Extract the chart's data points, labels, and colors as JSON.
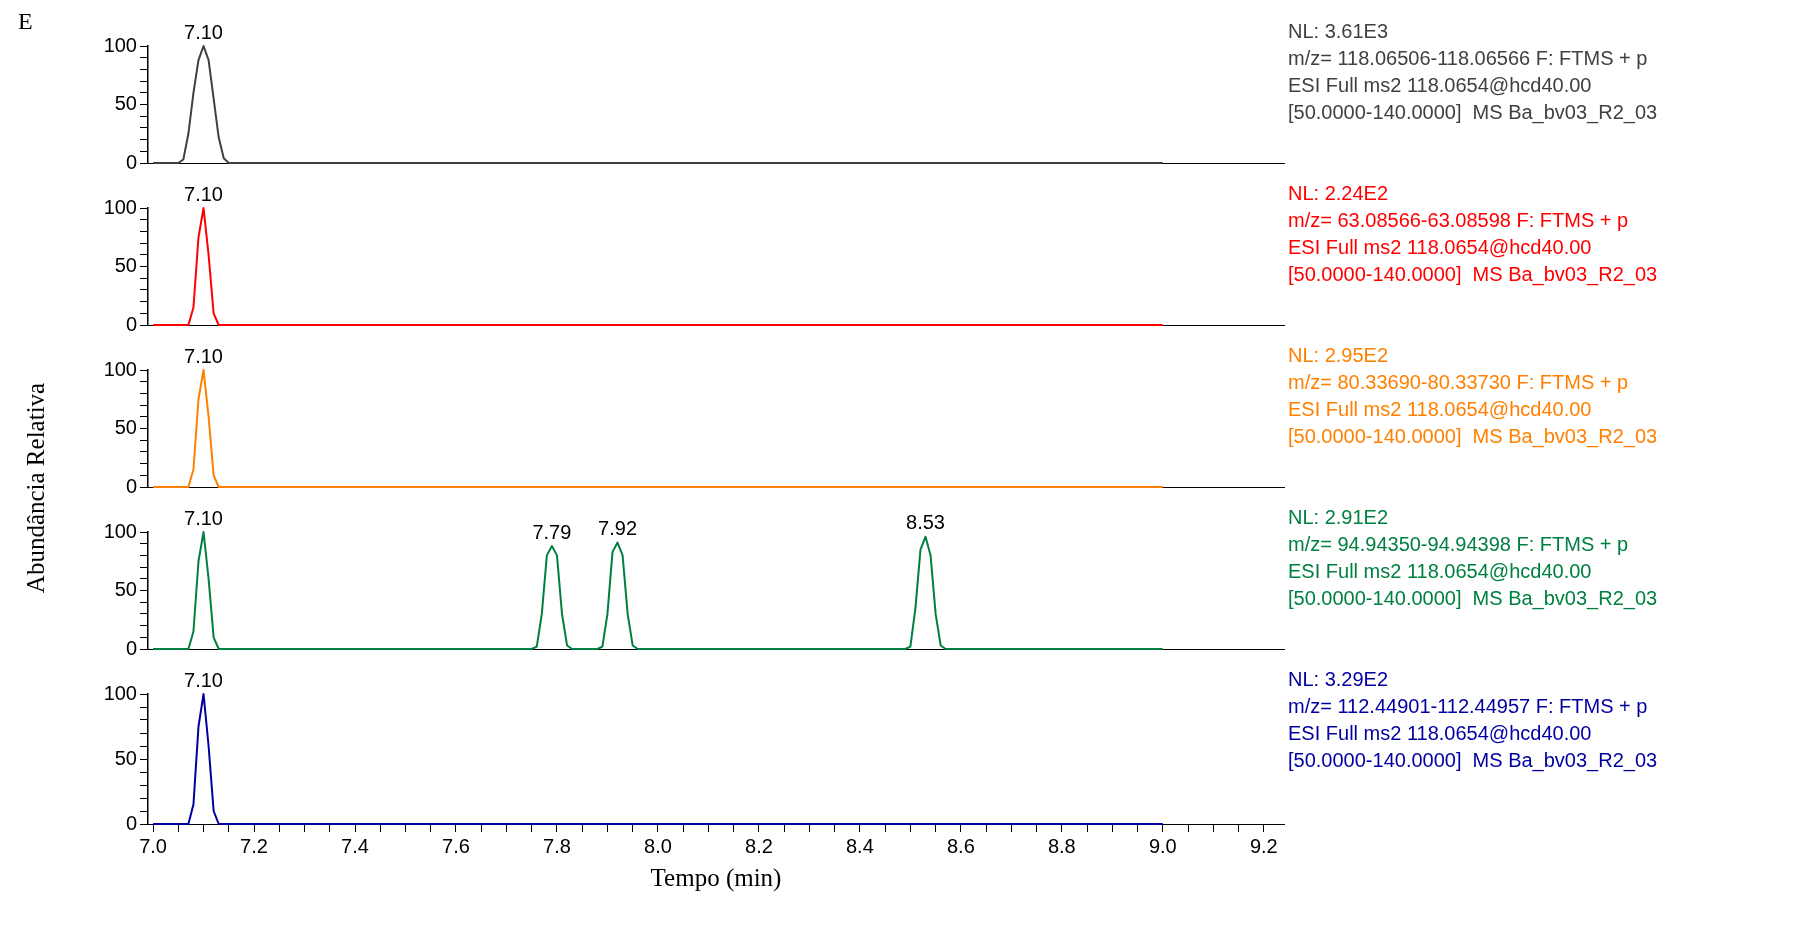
{
  "chart_data": [
    {
      "type": "line",
      "title": "E",
      "color": "#404040",
      "x": [
        7.0,
        7.05,
        7.06,
        7.07,
        7.08,
        7.09,
        7.1,
        7.11,
        7.12,
        7.13,
        7.14,
        7.15,
        9.0
      ],
      "values": [
        0,
        0,
        3,
        25,
        60,
        88,
        100,
        88,
        55,
        22,
        4,
        0,
        0
      ],
      "xlim": [
        6.99,
        9.24
      ],
      "ylim": [
        0,
        100
      ],
      "yticks": [
        {
          "value": 0,
          "label": "0"
        },
        {
          "value": 10,
          "label": null
        },
        {
          "value": 20,
          "label": null
        },
        {
          "value": 30,
          "label": null
        },
        {
          "value": 40,
          "label": null
        },
        {
          "value": 50,
          "label": "50"
        },
        {
          "value": 60,
          "label": null
        },
        {
          "value": 70,
          "label": null
        },
        {
          "value": 80,
          "label": null
        },
        {
          "value": 90,
          "label": null
        },
        {
          "value": 100,
          "label": "100"
        }
      ],
      "tick_labels": "y",
      "grid": false,
      "legend": false,
      "annotations": [
        {
          "text": "7.10",
          "x": 7.1,
          "y": 100
        },
        "NL: 3.61E3",
        "m/z= 118.06506-118.06566 F: FTMS + p",
        "ESI Full ms2 118.0654@hcd40.00",
        "[50.0000-140.0000]  MS Ba_bv03_R2_03"
      ]
    },
    {
      "type": "line",
      "color": "#ff0000",
      "x": [
        7.0,
        7.07,
        7.08,
        7.09,
        7.1,
        7.11,
        7.12,
        7.13,
        9.0
      ],
      "values": [
        0,
        0,
        15,
        75,
        100,
        60,
        10,
        0,
        0
      ],
      "xlim": [
        6.99,
        9.24
      ],
      "ylim": [
        0,
        100
      ],
      "yticks": [
        {
          "value": 0,
          "label": "0"
        },
        {
          "value": 10,
          "label": null
        },
        {
          "value": 20,
          "label": null
        },
        {
          "value": 30,
          "label": null
        },
        {
          "value": 40,
          "label": null
        },
        {
          "value": 50,
          "label": "50"
        },
        {
          "value": 60,
          "label": null
        },
        {
          "value": 70,
          "label": null
        },
        {
          "value": 80,
          "label": null
        },
        {
          "value": 90,
          "label": null
        },
        {
          "value": 100,
          "label": "100"
        }
      ],
      "tick_labels": "y",
      "grid": false,
      "legend": false,
      "annotations": [
        {
          "text": "7.10",
          "x": 7.1,
          "y": 100
        },
        "NL: 2.24E2",
        "m/z= 63.08566-63.08598 F: FTMS + p",
        "ESI Full ms2 118.0654@hcd40.00",
        "[50.0000-140.0000]  MS Ba_bv03_R2_03"
      ]
    },
    {
      "type": "line",
      "color": "#ff8000",
      "ylabel": "Abundância Relativa",
      "x": [
        7.0,
        7.07,
        7.08,
        7.09,
        7.1,
        7.11,
        7.12,
        7.13,
        9.0
      ],
      "values": [
        0,
        0,
        15,
        75,
        100,
        60,
        10,
        0,
        0
      ],
      "xlim": [
        6.99,
        9.24
      ],
      "ylim": [
        0,
        100
      ],
      "yticks": [
        {
          "value": 0,
          "label": "0"
        },
        {
          "value": 10,
          "label": null
        },
        {
          "value": 20,
          "label": null
        },
        {
          "value": 30,
          "label": null
        },
        {
          "value": 40,
          "label": null
        },
        {
          "value": 50,
          "label": "50"
        },
        {
          "value": 60,
          "label": null
        },
        {
          "value": 70,
          "label": null
        },
        {
          "value": 80,
          "label": null
        },
        {
          "value": 90,
          "label": null
        },
        {
          "value": 100,
          "label": "100"
        }
      ],
      "tick_labels": "y",
      "grid": false,
      "legend": false,
      "annotations": [
        {
          "text": "7.10",
          "x": 7.1,
          "y": 100
        },
        "NL: 2.95E2",
        "m/z= 80.33690-80.33730 F: FTMS + p",
        "ESI Full ms2 118.0654@hcd40.00",
        "[50.0000-140.0000]  MS Ba_bv03_R2_03"
      ]
    },
    {
      "type": "line",
      "color": "#008040",
      "x": [
        7.0,
        7.07,
        7.08,
        7.09,
        7.1,
        7.11,
        7.12,
        7.13,
        7.75,
        7.76,
        7.77,
        7.78,
        7.79,
        7.8,
        7.81,
        7.82,
        7.83,
        7.88,
        7.89,
        7.9,
        7.91,
        7.92,
        7.93,
        7.94,
        7.95,
        7.96,
        8.49,
        8.5,
        8.51,
        8.52,
        8.53,
        8.54,
        8.55,
        8.56,
        8.57,
        9.0
      ],
      "values": [
        0,
        0,
        15,
        75,
        100,
        60,
        10,
        0,
        0,
        2,
        30,
        80,
        88,
        80,
        30,
        3,
        0,
        0,
        2,
        30,
        83,
        91,
        80,
        30,
        3,
        0,
        0,
        2,
        35,
        85,
        96,
        80,
        30,
        3,
        0,
        0
      ],
      "xlim": [
        6.99,
        9.24
      ],
      "ylim": [
        0,
        100
      ],
      "yticks": [
        {
          "value": 0,
          "label": "0"
        },
        {
          "value": 10,
          "label": null
        },
        {
          "value": 20,
          "label": null
        },
        {
          "value": 30,
          "label": null
        },
        {
          "value": 40,
          "label": null
        },
        {
          "value": 50,
          "label": "50"
        },
        {
          "value": 60,
          "label": null
        },
        {
          "value": 70,
          "label": null
        },
        {
          "value": 80,
          "label": null
        },
        {
          "value": 90,
          "label": null
        },
        {
          "value": 100,
          "label": "100"
        }
      ],
      "tick_labels": "y",
      "grid": false,
      "legend": false,
      "annotations": [
        {
          "text": "7.10",
          "x": 7.1,
          "y": 100
        },
        {
          "text": "7.79",
          "x": 7.79,
          "y": 88
        },
        {
          "text": "7.92",
          "x": 7.92,
          "y": 91
        },
        {
          "text": "8.53",
          "x": 8.53,
          "y": 96
        },
        "NL: 2.91E2",
        "m/z= 94.94350-94.94398 F: FTMS + p",
        "ESI Full ms2 118.0654@hcd40.00",
        "[50.0000-140.0000]  MS Ba_bv03_R2_03"
      ]
    },
    {
      "type": "line",
      "color": "#0000a0",
      "xlabel": "Tempo (min)",
      "x": [
        7.0,
        7.07,
        7.08,
        7.09,
        7.1,
        7.11,
        7.12,
        7.13,
        9.0
      ],
      "values": [
        0,
        0,
        15,
        75,
        100,
        60,
        10,
        0,
        0
      ],
      "xlim": [
        6.99,
        9.24
      ],
      "xticks": [
        {
          "value": 7.0,
          "label": "7.0"
        },
        {
          "value": 7.05,
          "label": null
        },
        {
          "value": 7.1,
          "label": null
        },
        {
          "value": 7.15,
          "label": null
        },
        {
          "value": 7.2,
          "label": "7.2"
        },
        {
          "value": 7.25,
          "label": null
        },
        {
          "value": 7.3,
          "label": null
        },
        {
          "value": 7.35,
          "label": null
        },
        {
          "value": 7.4,
          "label": "7.4"
        },
        {
          "value": 7.45,
          "label": null
        },
        {
          "value": 7.5,
          "label": null
        },
        {
          "value": 7.55,
          "label": null
        },
        {
          "value": 7.6,
          "label": "7.6"
        },
        {
          "value": 7.65,
          "label": null
        },
        {
          "value": 7.7,
          "label": null
        },
        {
          "value": 7.75,
          "label": null
        },
        {
          "value": 7.8,
          "label": "7.8"
        },
        {
          "value": 7.85,
          "label": null
        },
        {
          "value": 7.9,
          "label": null
        },
        {
          "value": 7.95,
          "label": null
        },
        {
          "value": 8.0,
          "label": "8.0"
        },
        {
          "value": 8.05,
          "label": null
        },
        {
          "value": 8.1,
          "label": null
        },
        {
          "value": 8.15,
          "label": null
        },
        {
          "value": 8.2,
          "label": "8.2"
        },
        {
          "value": 8.25,
          "label": null
        },
        {
          "value": 8.3,
          "label": null
        },
        {
          "value": 8.35,
          "label": null
        },
        {
          "value": 8.4,
          "label": "8.4"
        },
        {
          "value": 8.45,
          "label": null
        },
        {
          "value": 8.5,
          "label": null
        },
        {
          "value": 8.55,
          "label": null
        },
        {
          "value": 8.6,
          "label": "8.6"
        },
        {
          "value": 8.65,
          "label": null
        },
        {
          "value": 8.7,
          "label": null
        },
        {
          "value": 8.75,
          "label": null
        },
        {
          "value": 8.8,
          "label": "8.8"
        },
        {
          "value": 8.85,
          "label": null
        },
        {
          "value": 8.9,
          "label": null
        },
        {
          "value": 8.95,
          "label": null
        },
        {
          "value": 9.0,
          "label": "9.0"
        },
        {
          "value": 9.05,
          "label": null
        },
        {
          "value": 9.1,
          "label": null
        },
        {
          "value": 9.15,
          "label": null
        },
        {
          "value": 9.2,
          "label": "9.2"
        }
      ],
      "ylim": [
        0,
        100
      ],
      "yticks": [
        {
          "value": 0,
          "label": "0"
        },
        {
          "value": 10,
          "label": null
        },
        {
          "value": 20,
          "label": null
        },
        {
          "value": 30,
          "label": null
        },
        {
          "value": 40,
          "label": null
        },
        {
          "value": 50,
          "label": "50"
        },
        {
          "value": 60,
          "label": null
        },
        {
          "value": 70,
          "label": null
        },
        {
          "value": 80,
          "label": null
        },
        {
          "value": 90,
          "label": null
        },
        {
          "value": 100,
          "label": "100"
        }
      ],
      "grid": false,
      "legend": false,
      "annotations": [
        {
          "text": "7.10",
          "x": 7.1,
          "y": 100
        },
        "NL: 3.29E2",
        "m/z= 112.44901-112.44957 F: FTMS + p",
        "ESI Full ms2 118.0654@hcd40.00",
        "[50.0000-140.0000]  MS Ba_bv03_R2_03"
      ]
    }
  ]
}
